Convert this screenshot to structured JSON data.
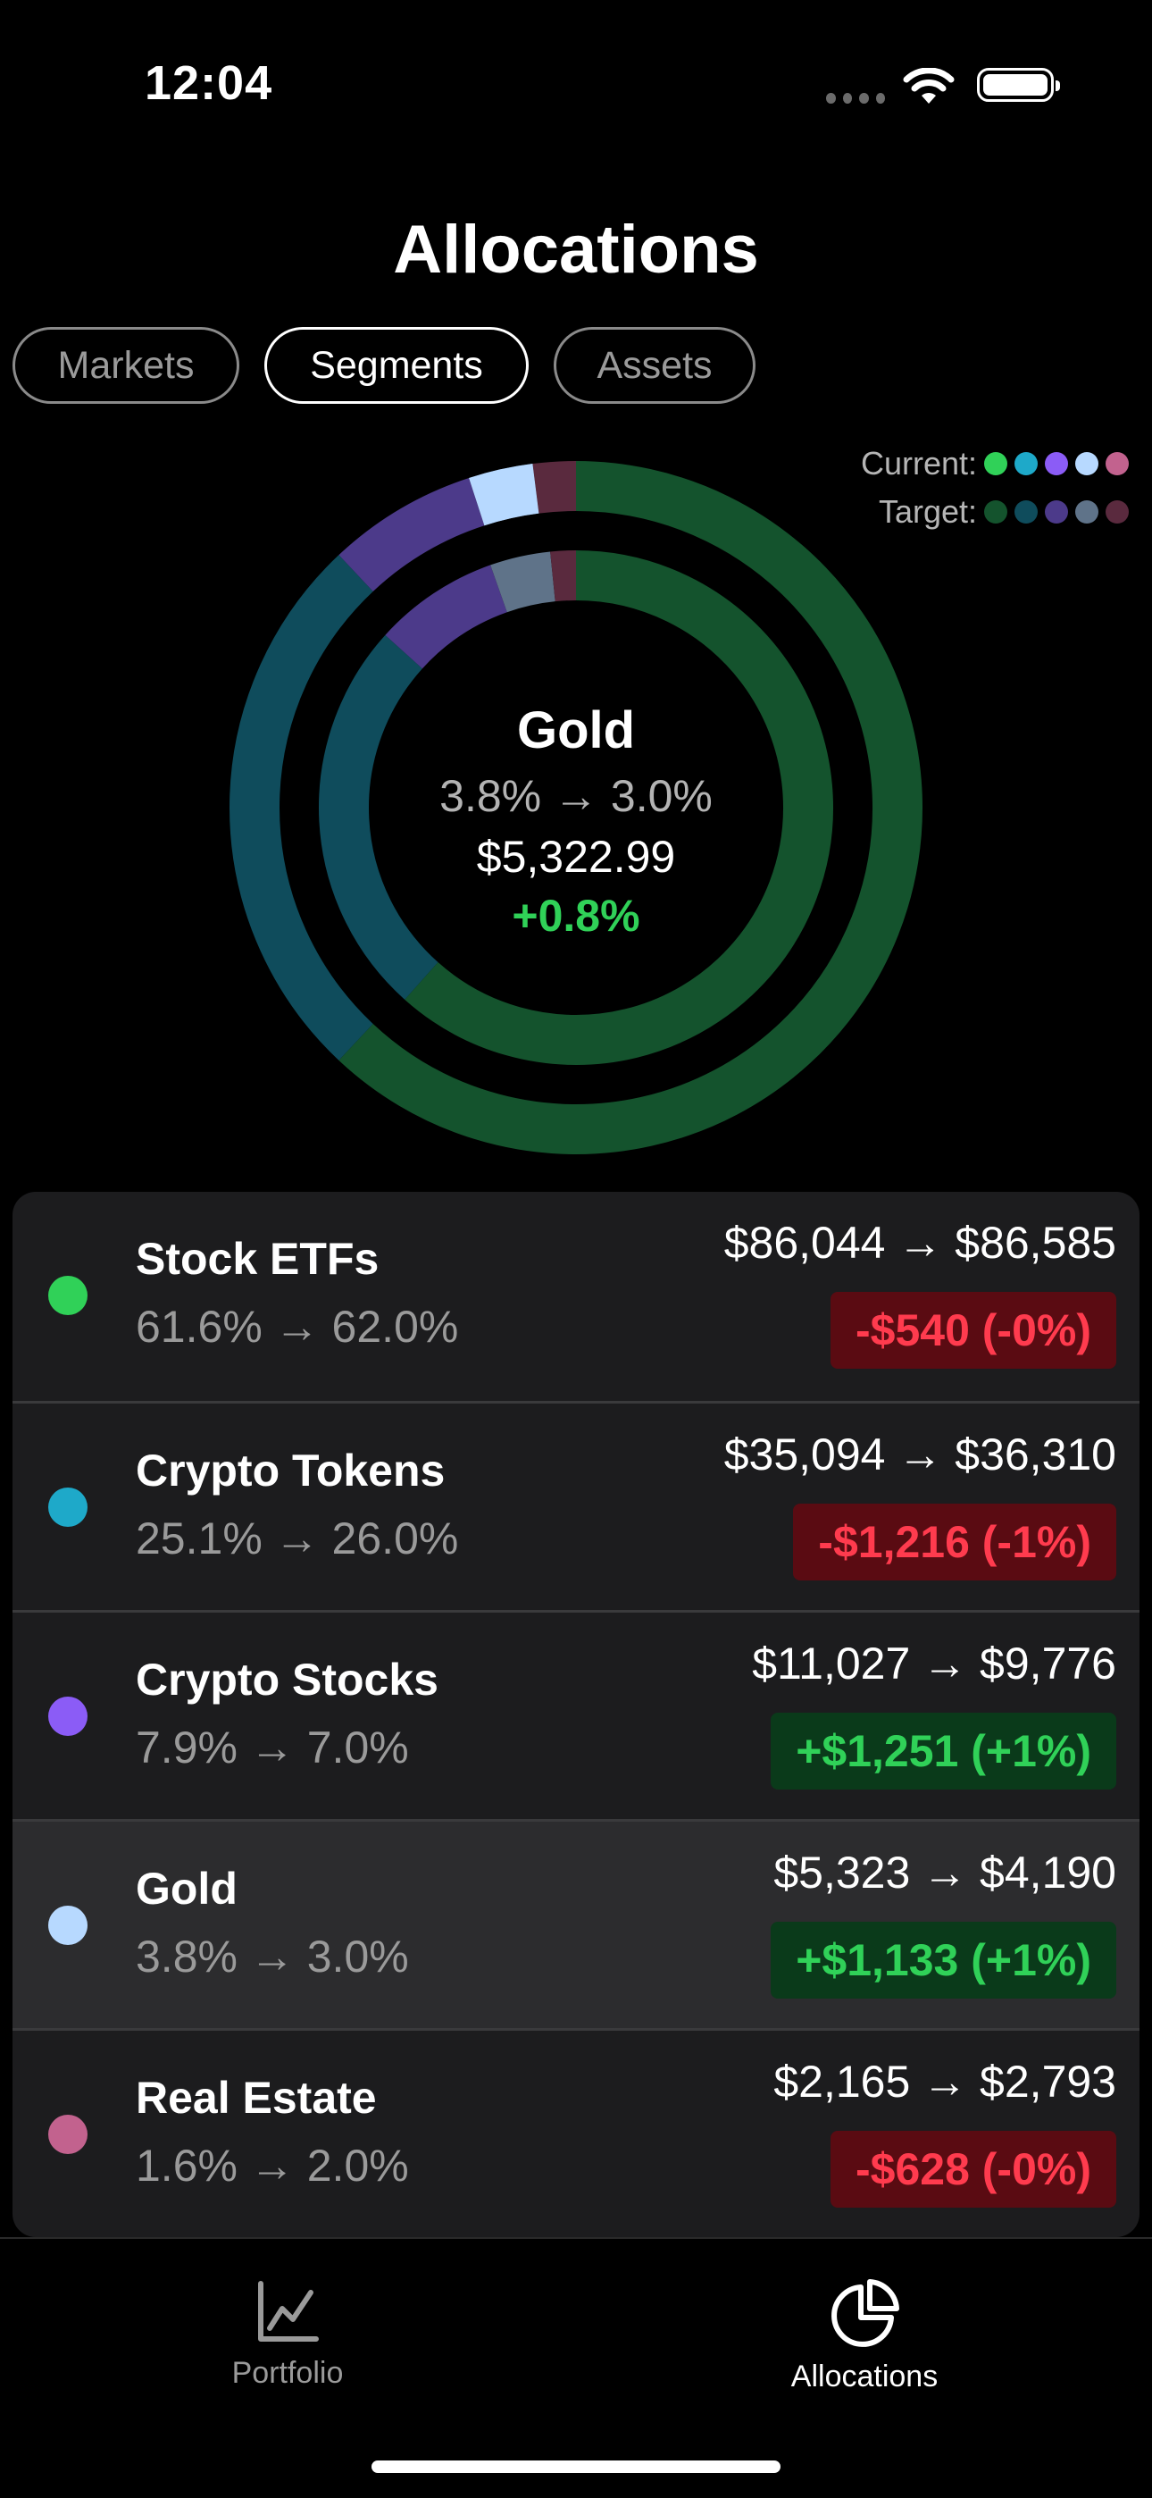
{
  "status_bar": {
    "time": "12:04"
  },
  "title": "Allocations",
  "filters": [
    {
      "label": "Markets",
      "active": false
    },
    {
      "label": "Segments",
      "active": true
    },
    {
      "label": "Assets",
      "active": false
    }
  ],
  "legend": {
    "current_label": "Current:",
    "target_label": "Target:",
    "current_colors": [
      "#30d158",
      "#1ea9c9",
      "#8b5cf6",
      "#b7d9ff",
      "#c2628e"
    ],
    "target_colors": [
      "#14532d",
      "#0f4c5c",
      "#4c3a8a",
      "#5f7389",
      "#5a2a3e"
    ]
  },
  "center": {
    "name": "Gold",
    "pct": "3.8% → 3.0%",
    "value": "$5,322.99",
    "change": "+0.8%"
  },
  "chart_data": {
    "type": "pie",
    "categories": [
      "Stock ETFs",
      "Crypto Tokens",
      "Crypto Stocks",
      "Gold",
      "Real Estate"
    ],
    "series": [
      {
        "name": "Current",
        "values": [
          61.6,
          25.1,
          7.9,
          3.8,
          1.6
        ]
      },
      {
        "name": "Target",
        "values": [
          62.0,
          26.0,
          7.0,
          3.0,
          2.0
        ]
      }
    ],
    "highlighted": "Gold"
  },
  "rows": [
    {
      "name": "Stock ETFs",
      "pct": "61.6% → 62.0%",
      "amount": "$86,044 → $86,585",
      "badge": "-$540 (-0%)",
      "positive": false,
      "color": "#30d158"
    },
    {
      "name": "Crypto Tokens",
      "pct": "25.1% → 26.0%",
      "amount": "$35,094 → $36,310",
      "badge": "-$1,216 (-1%)",
      "positive": false,
      "color": "#1ea9c9"
    },
    {
      "name": "Crypto Stocks",
      "pct": "7.9% → 7.0%",
      "amount": "$11,027 → $9,776",
      "badge": "+$1,251 (+1%)",
      "positive": true,
      "color": "#8b5cf6"
    },
    {
      "name": "Gold",
      "pct": "3.8% → 3.0%",
      "amount": "$5,323 → $4,190",
      "badge": "+$1,133 (+1%)",
      "positive": true,
      "color": "#b7d9ff"
    },
    {
      "name": "Real Estate",
      "pct": "1.6% → 2.0%",
      "amount": "$2,165 → $2,793",
      "badge": "-$628 (-0%)",
      "positive": false,
      "color": "#c2628e"
    }
  ],
  "tabs": [
    {
      "label": "Portfolio",
      "icon": "line-chart-icon",
      "active": false
    },
    {
      "label": "Allocations",
      "icon": "pie-chart-icon",
      "active": true
    }
  ]
}
